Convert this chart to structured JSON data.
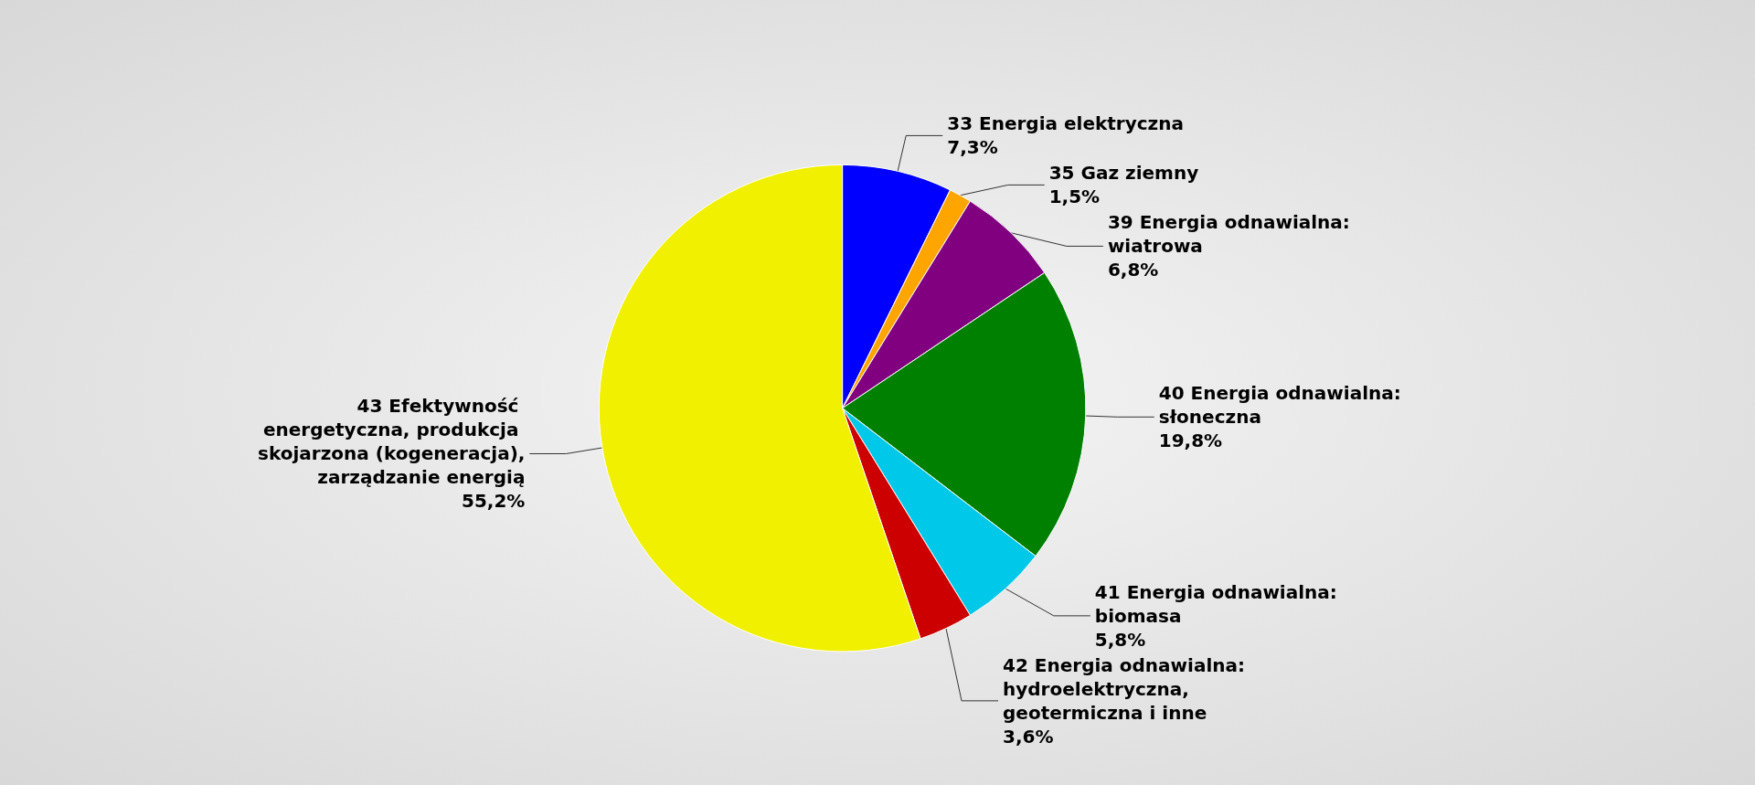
{
  "chart_data": {
    "type": "pie",
    "categories": [
      "33 Energia elektryczna",
      "35 Gaz ziemny",
      "39 Energia odnawialna: wiatrowa",
      "40 Energia odnawialna: słoneczna",
      "41 Energia odnawialna: biomasa",
      "42 Energia odnawialna: hydroelektryczna, geotermiczna i inne",
      "43 Efektywność energetyczna, produkcja skojarzona (kogeneracja), zarządzanie energią"
    ],
    "values": [
      7.3,
      1.5,
      6.8,
      19.8,
      5.8,
      3.6,
      55.2
    ],
    "colors": [
      "#0000ff",
      "#ffa500",
      "#800080",
      "#008000",
      "#00c8e8",
      "#cc0000",
      "#f0f000"
    ],
    "value_labels": [
      "7,3%",
      "1,5%",
      "6,8%",
      "19,8%",
      "5,8%",
      "3,6%",
      "55,2%"
    ],
    "legend": false
  }
}
